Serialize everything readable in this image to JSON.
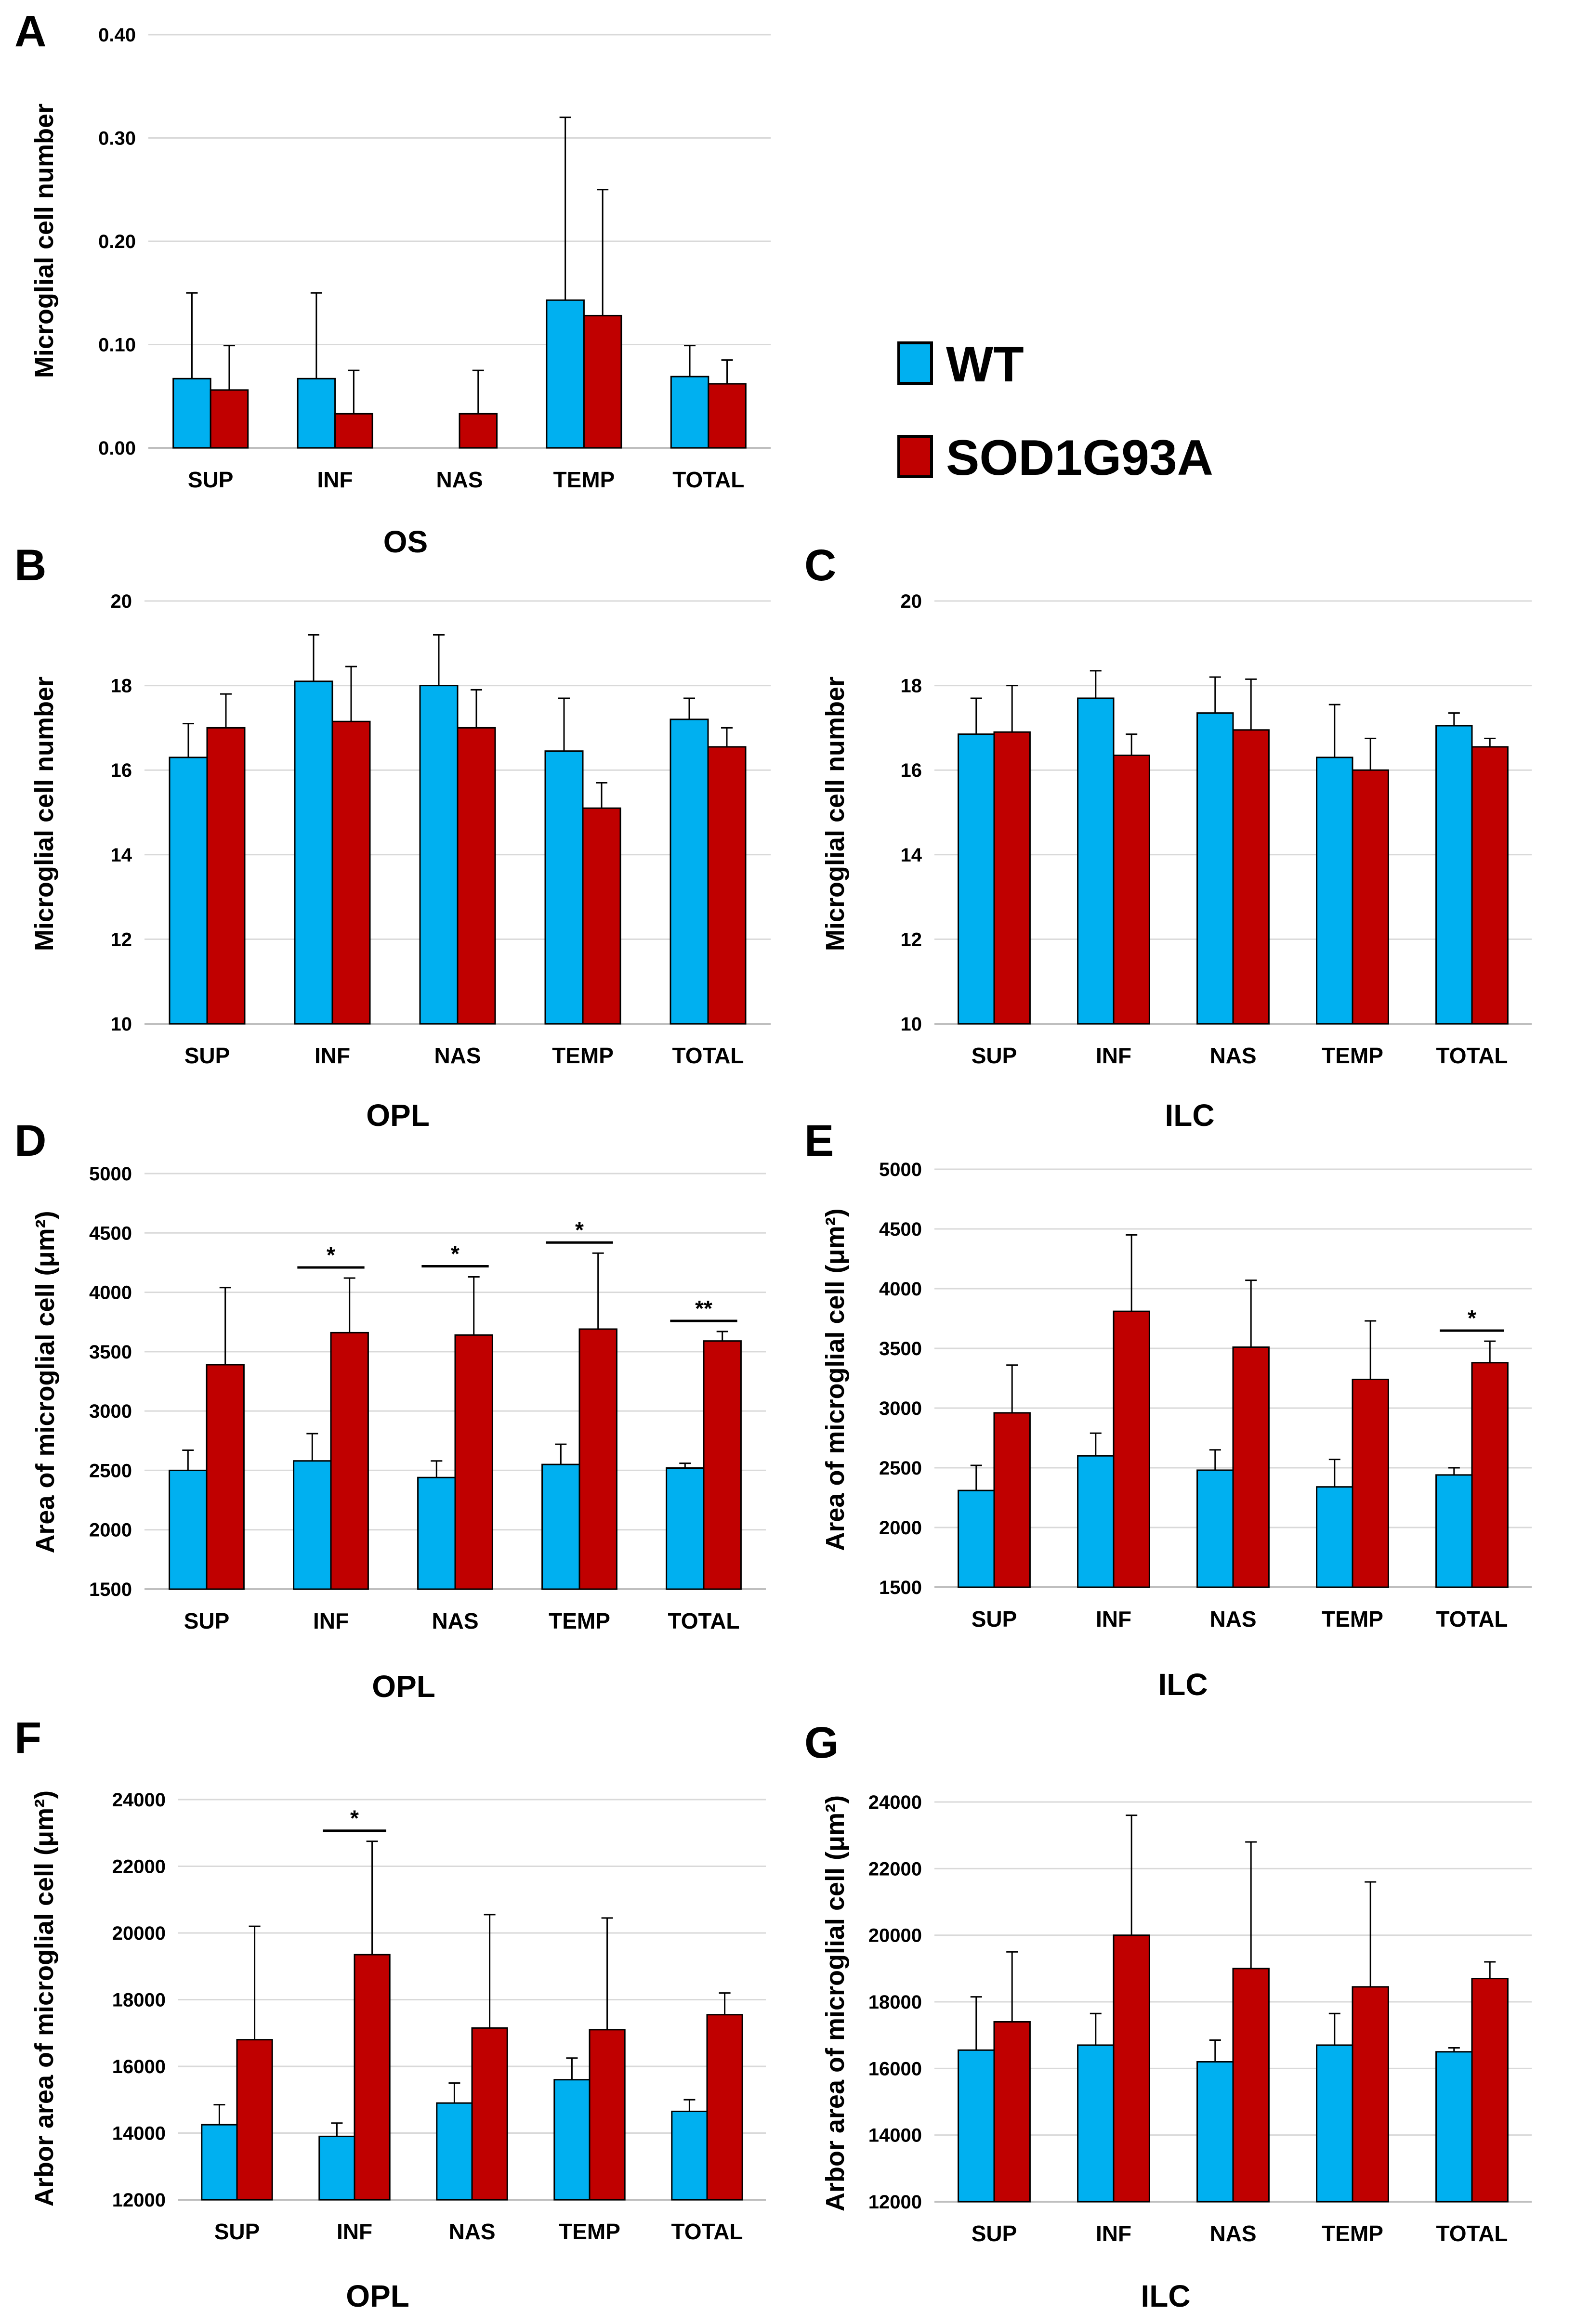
{
  "legend": {
    "entries": [
      {
        "label": "WT",
        "color": "#00b0f0"
      },
      {
        "label": "SOD1G93A",
        "color": "#c00000"
      }
    ]
  },
  "chart_data": [
    {
      "panel": "A",
      "type": "bar",
      "xlabel": "OS",
      "ylabel": "Microglial cell number",
      "ylim": [
        0,
        0.4
      ],
      "yticks": [
        "0.00",
        "0.10",
        "0.20",
        "0.30",
        "0.40"
      ],
      "categories": [
        "SUP",
        "INF",
        "NAS",
        "TEMP",
        "TOTAL"
      ],
      "series": [
        {
          "name": "WT",
          "values": [
            0.067,
            0.067,
            0.0,
            0.143,
            0.069
          ],
          "errors": [
            0.083,
            0.083,
            0.0,
            0.177,
            0.03
          ]
        },
        {
          "name": "SOD1G93A",
          "values": [
            0.056,
            0.033,
            0.033,
            0.128,
            0.062
          ],
          "errors": [
            0.043,
            0.042,
            0.042,
            0.122,
            0.023
          ]
        }
      ],
      "significance": []
    },
    {
      "panel": "B",
      "type": "bar",
      "xlabel": "OPL",
      "ylabel": "Microglial cell number",
      "ylim": [
        10,
        20
      ],
      "yticks": [
        "10",
        "12",
        "14",
        "16",
        "18",
        "20"
      ],
      "categories": [
        "SUP",
        "INF",
        "NAS",
        "TEMP",
        "TOTAL"
      ],
      "series": [
        {
          "name": "WT",
          "values": [
            16.3,
            18.1,
            18.0,
            16.45,
            17.2
          ],
          "errors": [
            0.8,
            1.1,
            1.2,
            1.25,
            0.5
          ]
        },
        {
          "name": "SOD1G93A",
          "values": [
            17.0,
            17.15,
            17.0,
            15.1,
            16.55
          ],
          "errors": [
            0.8,
            1.3,
            0.9,
            0.6,
            0.45
          ]
        }
      ],
      "significance": []
    },
    {
      "panel": "C",
      "type": "bar",
      "xlabel": "ILC",
      "ylabel": "Microglial cell number",
      "ylim": [
        10,
        20
      ],
      "yticks": [
        "10",
        "12",
        "14",
        "16",
        "18",
        "20"
      ],
      "categories": [
        "SUP",
        "INF",
        "NAS",
        "TEMP",
        "TOTAL"
      ],
      "series": [
        {
          "name": "WT",
          "values": [
            16.85,
            17.7,
            17.35,
            16.3,
            17.05
          ],
          "errors": [
            0.85,
            0.65,
            0.85,
            1.25,
            0.3
          ]
        },
        {
          "name": "SOD1G93A",
          "values": [
            16.9,
            16.35,
            16.95,
            16.0,
            16.55
          ],
          "errors": [
            1.1,
            0.5,
            1.2,
            0.75,
            0.2
          ]
        }
      ],
      "significance": []
    },
    {
      "panel": "D",
      "type": "bar",
      "xlabel": "OPL",
      "ylabel": "Area of microglial cell (μm²)",
      "ylim": [
        1500,
        5000
      ],
      "yticks": [
        "1500",
        "2000",
        "2500",
        "3000",
        "3500",
        "4000",
        "4500",
        "5000"
      ],
      "categories": [
        "SUP",
        "INF",
        "NAS",
        "TEMP",
        "TOTAL"
      ],
      "series": [
        {
          "name": "WT",
          "values": [
            2500,
            2580,
            2440,
            2550,
            2520
          ],
          "errors": [
            170,
            230,
            140,
            170,
            40
          ]
        },
        {
          "name": "SOD1G93A",
          "values": [
            3390,
            3660,
            3640,
            3690,
            3590
          ],
          "errors": [
            650,
            460,
            490,
            640,
            80
          ]
        }
      ],
      "significance": [
        {
          "category": 1,
          "label": "*"
        },
        {
          "category": 2,
          "label": "*"
        },
        {
          "category": 3,
          "label": "*"
        },
        {
          "category": 4,
          "label": "**"
        }
      ]
    },
    {
      "panel": "E",
      "type": "bar",
      "xlabel": "ILC",
      "ylabel": "Area of microglial cell (μm²)",
      "ylim": [
        1500,
        5000
      ],
      "yticks": [
        "1500",
        "2000",
        "2500",
        "3000",
        "3500",
        "4000",
        "4500",
        "5000"
      ],
      "categories": [
        "SUP",
        "INF",
        "NAS",
        "TEMP",
        "TOTAL"
      ],
      "series": [
        {
          "name": "WT",
          "values": [
            2310,
            2600,
            2480,
            2340,
            2440
          ],
          "errors": [
            210,
            190,
            170,
            230,
            60
          ]
        },
        {
          "name": "SOD1G93A",
          "values": [
            2960,
            3810,
            3510,
            3240,
            3380
          ],
          "errors": [
            400,
            640,
            560,
            490,
            180
          ]
        }
      ],
      "significance": [
        {
          "category": 4,
          "label": "*"
        }
      ]
    },
    {
      "panel": "F",
      "type": "bar",
      "xlabel": "OPL",
      "ylabel": "Arbor area of microglial cell (μm²)",
      "ylim": [
        12000,
        24000
      ],
      "yticks": [
        "12000",
        "14000",
        "16000",
        "18000",
        "20000",
        "22000",
        "24000"
      ],
      "categories": [
        "SUP",
        "INF",
        "NAS",
        "TEMP",
        "TOTAL"
      ],
      "series": [
        {
          "name": "WT",
          "values": [
            14250,
            13900,
            14900,
            15600,
            14650
          ],
          "errors": [
            600,
            400,
            600,
            650,
            350
          ]
        },
        {
          "name": "SOD1G93A",
          "values": [
            16800,
            19350,
            17150,
            17100,
            17550
          ],
          "errors": [
            3400,
            3400,
            3400,
            3350,
            650
          ]
        }
      ],
      "significance": [
        {
          "category": 1,
          "label": "*"
        }
      ]
    },
    {
      "panel": "G",
      "type": "bar",
      "xlabel": "ILC",
      "ylabel": "Arbor area of microglial cell (μm²)",
      "ylim": [
        12000,
        24000
      ],
      "yticks": [
        "12000",
        "14000",
        "16000",
        "18000",
        "20000",
        "22000",
        "24000"
      ],
      "categories": [
        "SUP",
        "INF",
        "NAS",
        "TEMP",
        "TOTAL"
      ],
      "series": [
        {
          "name": "WT",
          "values": [
            16550,
            16700,
            16200,
            16700,
            16500
          ],
          "errors": [
            1600,
            950,
            650,
            950,
            120
          ]
        },
        {
          "name": "SOD1G93A",
          "values": [
            17400,
            20000,
            19000,
            18450,
            18700
          ],
          "errors": [
            2100,
            3600,
            3800,
            3150,
            500
          ]
        }
      ],
      "significance": []
    }
  ]
}
